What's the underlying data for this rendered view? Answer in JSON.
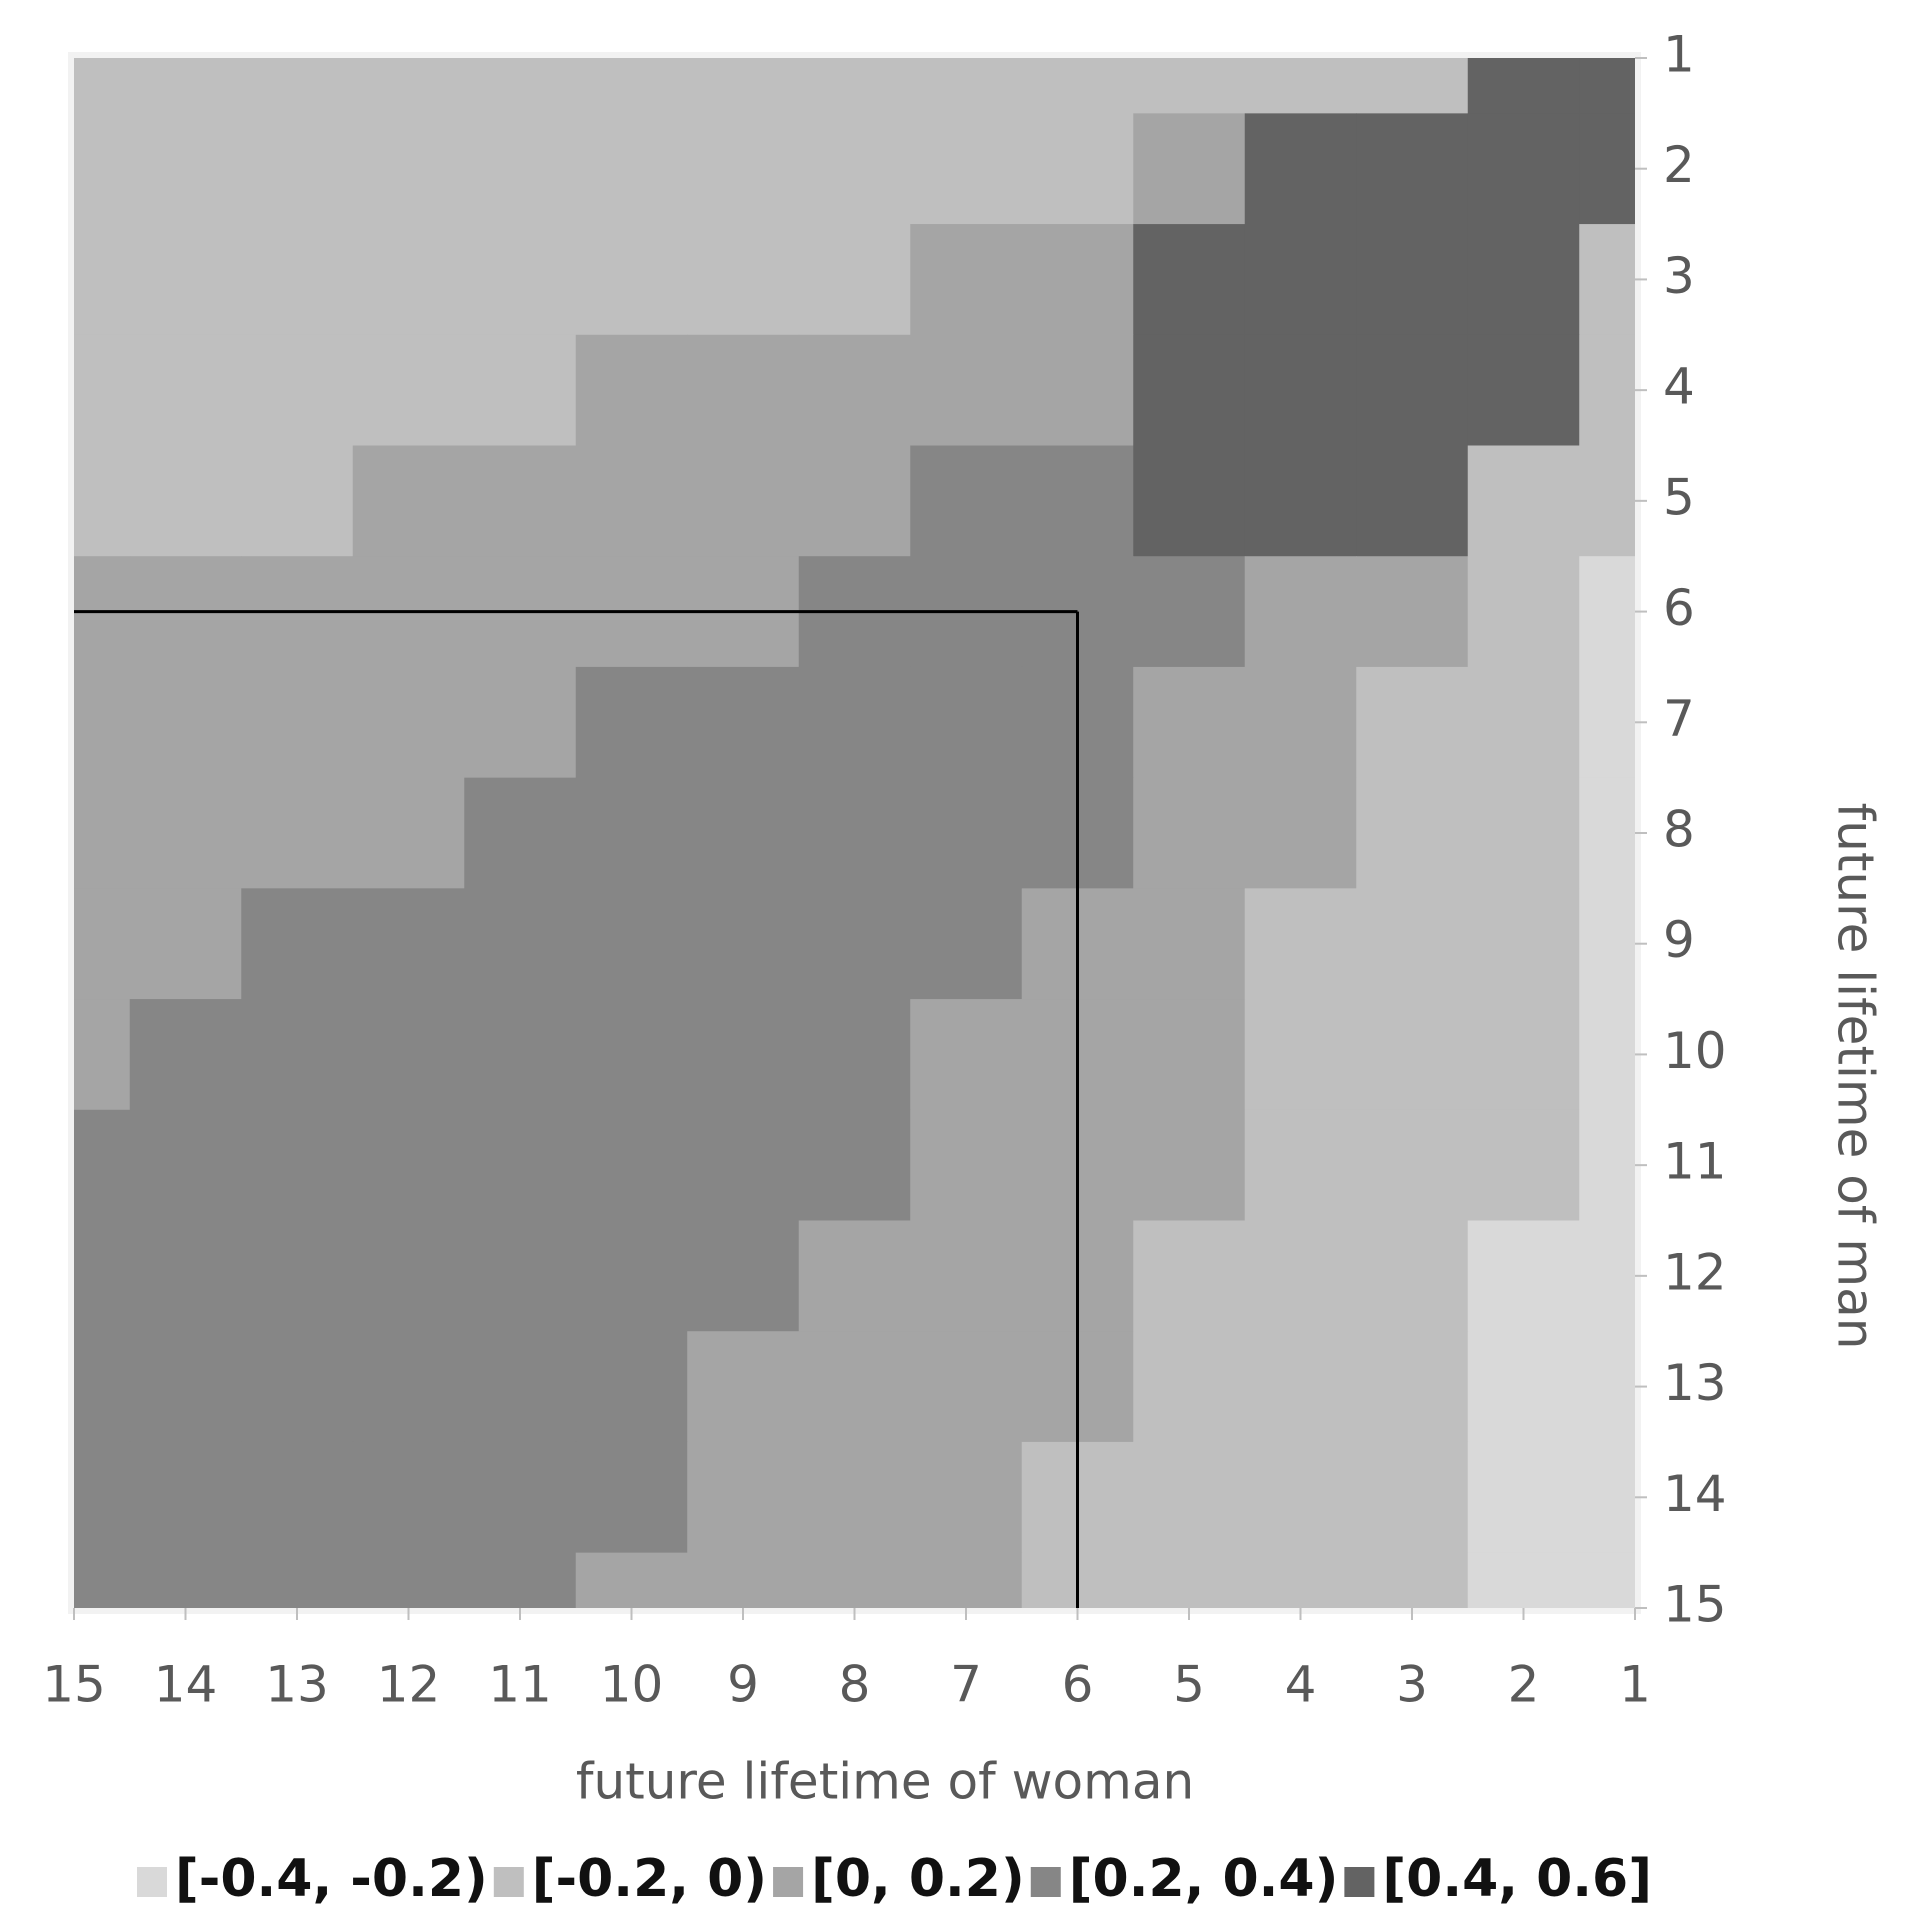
{
  "chart_data": {
    "type": "contour",
    "x_label": "future lifetime of woman",
    "y_label": "future lifetime of man",
    "x": [
      15,
      14,
      13,
      12,
      11,
      10,
      9,
      8,
      7,
      6,
      5,
      4,
      3,
      2,
      1
    ],
    "y": [
      1,
      2,
      3,
      4,
      5,
      6,
      7,
      8,
      9,
      10,
      11,
      12,
      13,
      14,
      15
    ],
    "xlim": [
      15,
      1
    ],
    "ylim": [
      15,
      1
    ],
    "xticks": [
      15,
      14,
      13,
      12,
      11,
      10,
      9,
      8,
      7,
      6,
      5,
      4,
      3,
      2,
      1
    ],
    "yticks": [
      1,
      2,
      3,
      4,
      5,
      6,
      7,
      8,
      9,
      10,
      11,
      12,
      13,
      14,
      15
    ],
    "z": [
      [
        -0.1,
        -0.1,
        -0.1,
        -0.1,
        -0.1,
        -0.1,
        -0.1,
        -0.1,
        -0.1,
        -0.1,
        -0.1,
        -0.1,
        -0.1,
        0.5,
        0.5
      ],
      [
        -0.1,
        -0.1,
        -0.1,
        -0.1,
        -0.1,
        -0.1,
        -0.1,
        -0.1,
        -0.1,
        -0.1,
        0.1,
        0.5,
        0.5,
        0.5,
        0.5
      ],
      [
        -0.1,
        -0.1,
        -0.1,
        -0.1,
        -0.1,
        -0.1,
        -0.1,
        -0.1,
        0.1,
        0.1,
        0.5,
        0.5,
        0.5,
        0.5,
        -0.1
      ],
      [
        -0.1,
        -0.1,
        -0.1,
        -0.1,
        -0.1,
        0.1,
        0.1,
        0.1,
        0.1,
        0.1,
        0.5,
        0.5,
        0.5,
        0.5,
        -0.1
      ],
      [
        -0.1,
        -0.1,
        -0.1,
        0.1,
        0.1,
        0.1,
        0.1,
        0.1,
        0.3,
        0.3,
        0.5,
        0.5,
        0.5,
        -0.1,
        -0.1
      ],
      [
        0.1,
        0.1,
        0.1,
        0.1,
        0.1,
        0.1,
        0.1,
        0.3,
        0.3,
        0.3,
        0.3,
        0.1,
        0.1,
        -0.1,
        -0.3
      ],
      [
        0.1,
        0.1,
        0.1,
        0.1,
        0.1,
        0.3,
        0.3,
        0.3,
        0.3,
        0.3,
        0.1,
        0.1,
        -0.1,
        -0.1,
        -0.3
      ],
      [
        0.1,
        0.1,
        0.1,
        0.1,
        0.3,
        0.3,
        0.3,
        0.3,
        0.3,
        0.3,
        0.1,
        0.1,
        -0.1,
        -0.1,
        -0.3
      ],
      [
        0.1,
        0.1,
        0.3,
        0.3,
        0.3,
        0.3,
        0.3,
        0.3,
        0.3,
        0.1,
        0.1,
        -0.1,
        -0.1,
        -0.1,
        -0.3
      ],
      [
        0.1,
        0.3,
        0.3,
        0.3,
        0.3,
        0.3,
        0.3,
        0.3,
        0.1,
        0.1,
        0.1,
        -0.1,
        -0.1,
        -0.1,
        -0.3
      ],
      [
        0.3,
        0.3,
        0.3,
        0.3,
        0.3,
        0.3,
        0.3,
        0.3,
        0.1,
        0.1,
        0.1,
        -0.1,
        -0.1,
        -0.1,
        -0.3
      ],
      [
        0.3,
        0.3,
        0.3,
        0.3,
        0.3,
        0.3,
        0.3,
        0.1,
        0.1,
        0.1,
        -0.1,
        -0.1,
        -0.1,
        -0.3,
        -0.3
      ],
      [
        0.3,
        0.3,
        0.3,
        0.3,
        0.3,
        0.3,
        0.1,
        0.1,
        0.1,
        0.1,
        -0.1,
        -0.1,
        -0.1,
        -0.3,
        -0.3
      ],
      [
        0.3,
        0.3,
        0.3,
        0.3,
        0.3,
        0.3,
        0.1,
        0.1,
        0.1,
        -0.1,
        -0.1,
        -0.1,
        -0.1,
        -0.3,
        -0.3
      ],
      [
        0.3,
        0.3,
        0.3,
        0.3,
        0.3,
        0.1,
        0.1,
        0.1,
        0.1,
        -0.1,
        -0.1,
        -0.1,
        -0.1,
        -0.3,
        -0.3
      ]
    ],
    "levels": [
      {
        "name": "[-0.4, -0.2)",
        "color": "#d9d9d9",
        "from": -0.4,
        "to": -0.2
      },
      {
        "name": "[-0.2, 0)",
        "color": "#bfbfbf",
        "from": -0.2,
        "to": 0
      },
      {
        "name": "[0, 0.2)",
        "color": "#a5a5a5",
        "from": 0,
        "to": 0.2
      },
      {
        "name": "[0.2, 0.4)",
        "color": "#868686",
        "from": 0.2,
        "to": 0.4
      },
      {
        "name": "[0.4, 0.6]",
        "color": "#636363",
        "from": 0.4,
        "to": 0.6
      }
    ],
    "vline": 6,
    "hline": 6
  }
}
